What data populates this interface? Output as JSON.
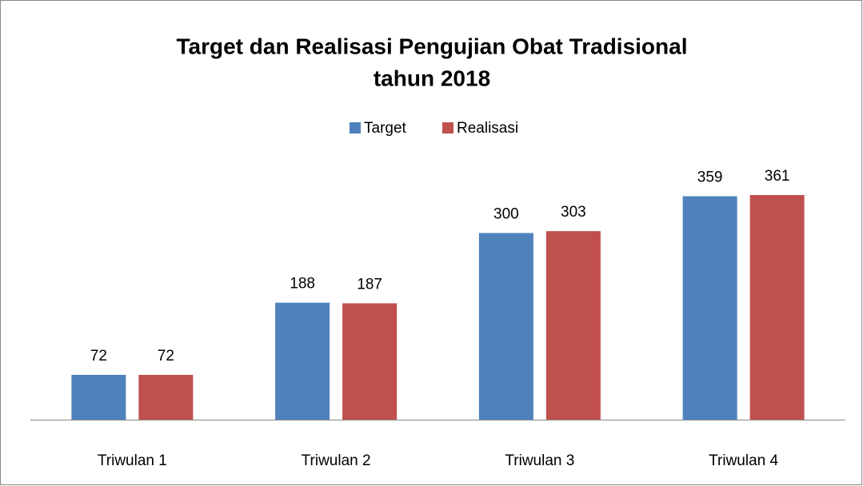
{
  "chart_data": {
    "type": "bar",
    "title": [
      "Target dan Realisasi Pengujian Obat Tradisional",
      "tahun 2018"
    ],
    "categories": [
      "Triwulan 1",
      "Triwulan 2",
      "Triwulan 3",
      "Triwulan 4"
    ],
    "series": [
      {
        "name": "Target",
        "color": "#4f81bd",
        "values": [
          72,
          188,
          300,
          359
        ]
      },
      {
        "name": "Realisasi",
        "color": "#c0504d",
        "values": [
          72,
          187,
          303,
          361
        ]
      }
    ],
    "legend": "top"
  }
}
